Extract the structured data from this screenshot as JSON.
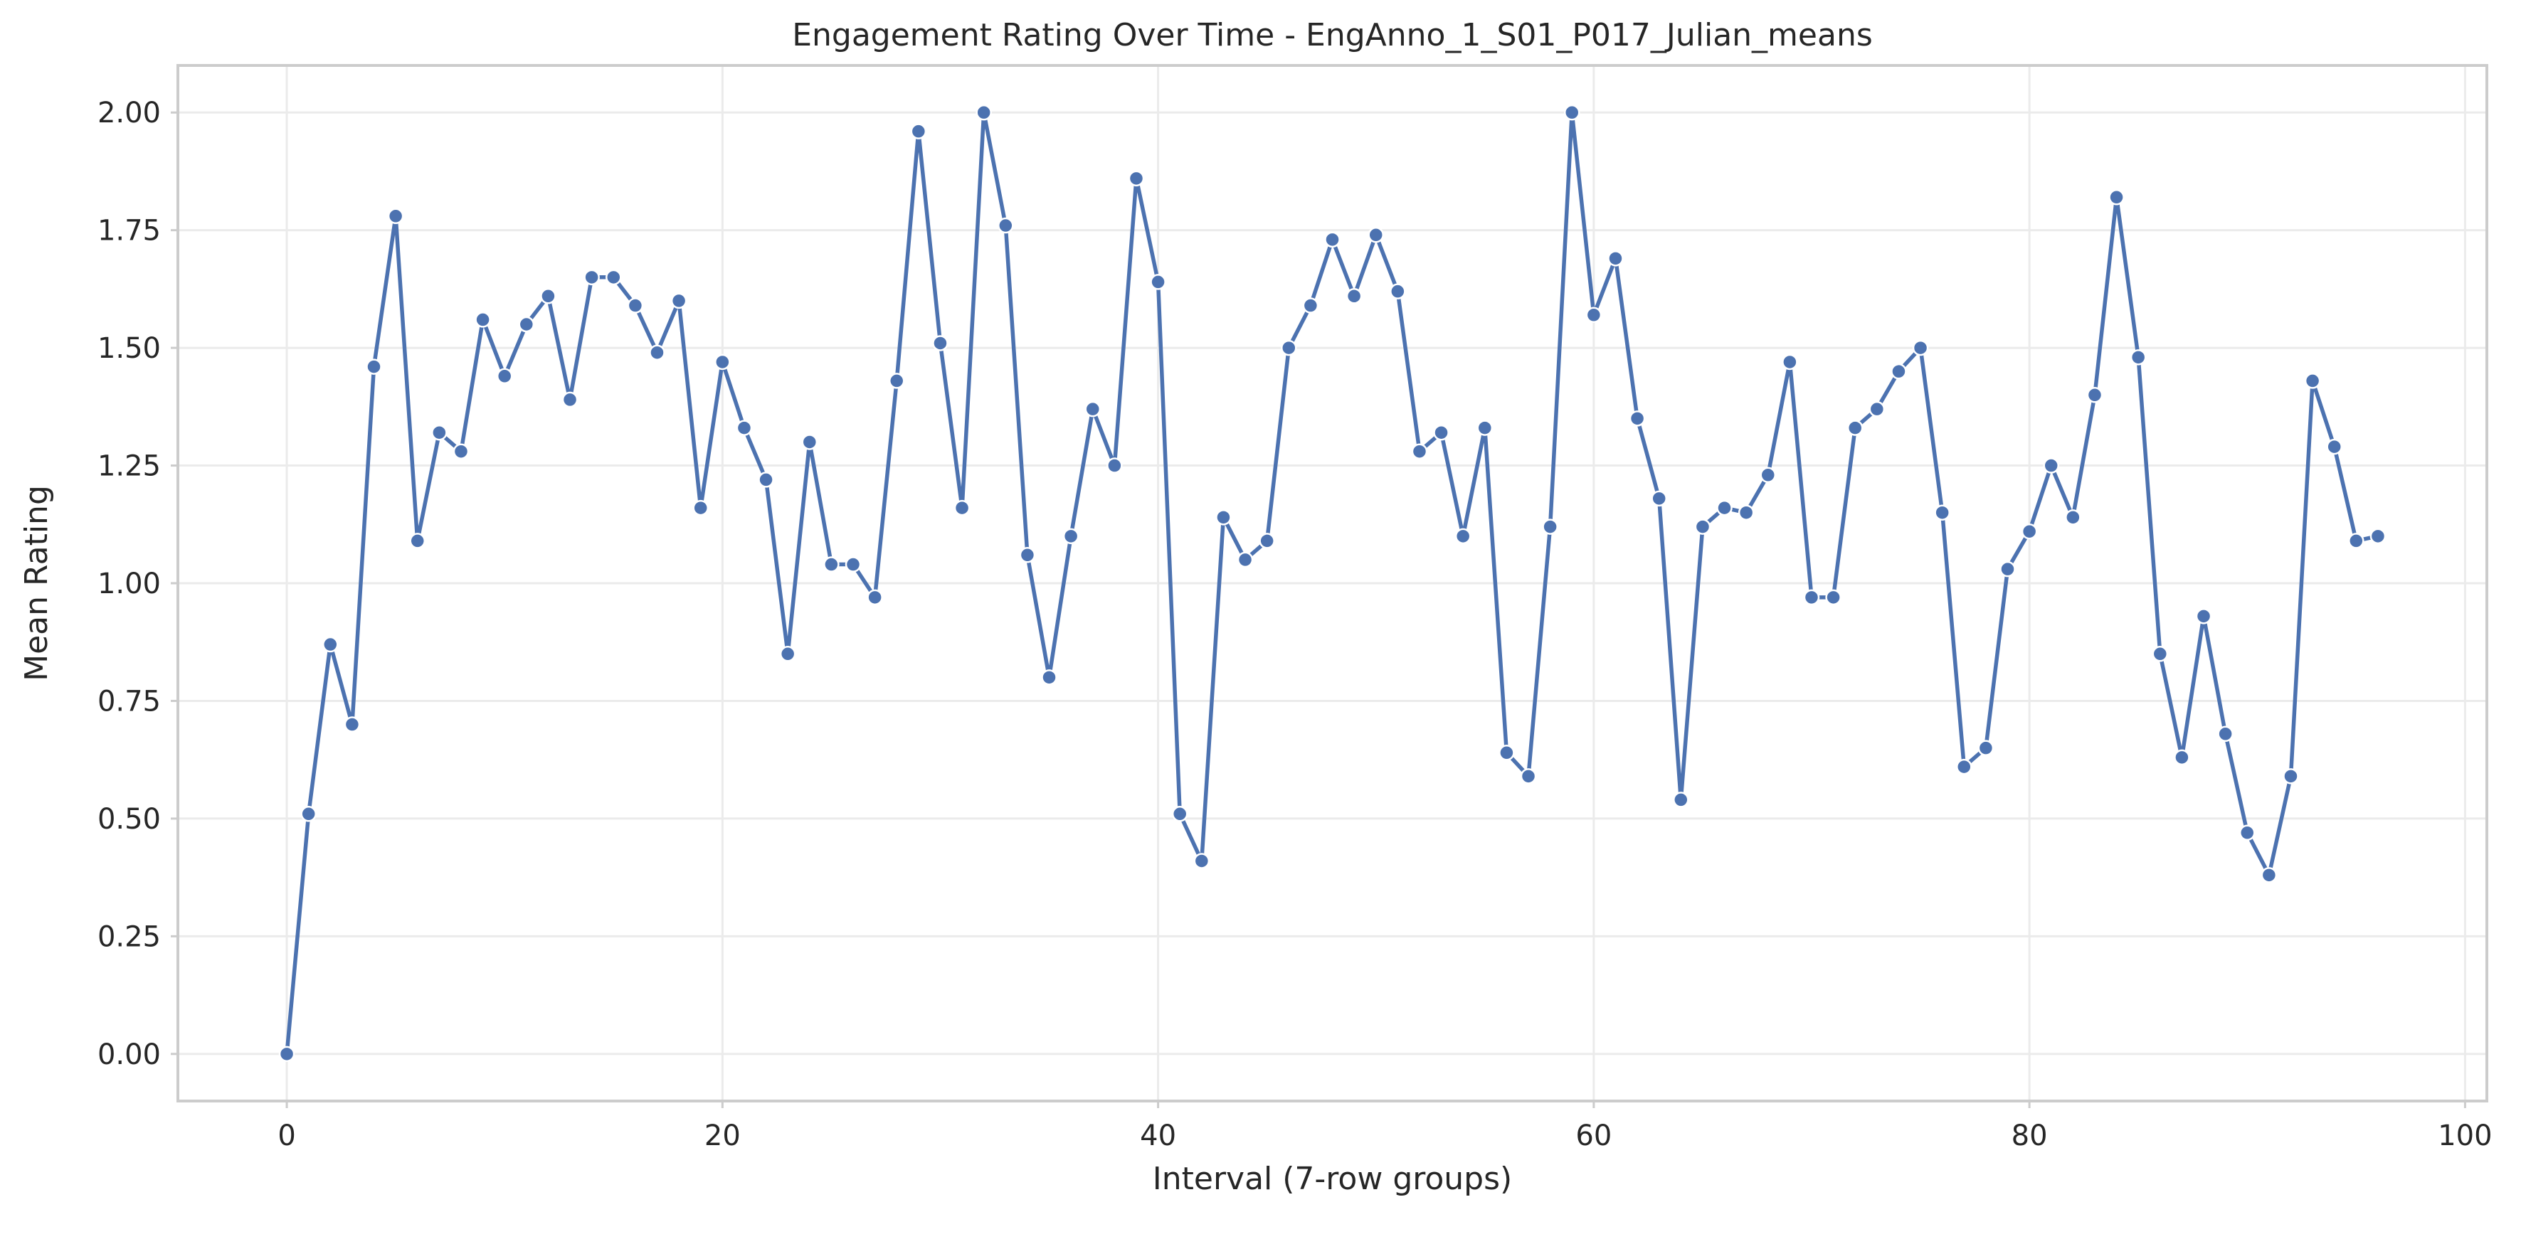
{
  "chart_data": {
    "type": "line",
    "title": "Engagement Rating Over Time -  EngAnno_1_S01_P017_Julian_means",
    "xlabel": "Interval (7-row groups)",
    "ylabel": "Mean Rating",
    "xlim": [
      -5,
      101
    ],
    "ylim": [
      -0.1,
      2.1
    ],
    "xticks": [
      0,
      20,
      40,
      60,
      80,
      100
    ],
    "xtick_labels": [
      "0",
      "20",
      "40",
      "60",
      "80",
      "100"
    ],
    "yticks": [
      0,
      0.25,
      0.5,
      0.75,
      1.0,
      1.25,
      1.5,
      1.75,
      2.0
    ],
    "ytick_labels": [
      "0.00",
      "0.25",
      "0.50",
      "0.75",
      "1.00",
      "1.25",
      "1.50",
      "1.75",
      "2.00"
    ],
    "grid": true,
    "marker": "circle",
    "colors": {
      "series": "#4c72b0",
      "grid": "#ebebeb",
      "frame": "#cccccc",
      "text": "#262626"
    },
    "x": [
      0,
      1,
      2,
      3,
      4,
      5,
      6,
      7,
      8,
      9,
      10,
      11,
      12,
      13,
      14,
      15,
      16,
      17,
      18,
      19,
      20,
      21,
      22,
      23,
      24,
      25,
      26,
      27,
      28,
      29,
      30,
      31,
      32,
      33,
      34,
      35,
      36,
      37,
      38,
      39,
      40,
      41,
      42,
      43,
      44,
      45,
      46,
      47,
      48,
      49,
      50,
      51,
      52,
      53,
      54,
      55,
      56,
      57,
      58,
      59,
      60,
      61,
      62,
      63,
      64,
      65,
      66,
      67,
      68,
      69,
      70,
      71,
      72,
      73,
      74,
      75,
      76,
      77,
      78,
      79,
      80,
      81,
      82,
      83,
      84,
      85,
      86,
      87,
      88,
      89,
      90,
      91,
      92,
      93,
      94,
      95,
      96
    ],
    "y": [
      0.0,
      0.51,
      0.87,
      0.7,
      1.46,
      1.78,
      1.09,
      1.32,
      1.28,
      1.56,
      1.44,
      1.55,
      1.61,
      1.39,
      1.65,
      1.65,
      1.59,
      1.49,
      1.6,
      1.16,
      1.47,
      1.33,
      1.22,
      0.85,
      1.3,
      1.04,
      1.04,
      0.97,
      1.43,
      1.96,
      1.51,
      1.16,
      2.0,
      1.76,
      1.06,
      0.8,
      1.1,
      1.37,
      1.25,
      1.86,
      1.64,
      0.51,
      0.41,
      1.14,
      1.05,
      1.09,
      1.5,
      1.59,
      1.73,
      1.61,
      1.74,
      1.62,
      1.28,
      1.32,
      1.1,
      1.33,
      0.64,
      0.59,
      1.12,
      2.0,
      1.57,
      1.69,
      1.35,
      1.18,
      0.54,
      1.12,
      1.16,
      1.15,
      1.23,
      1.47,
      0.97,
      0.97,
      1.33,
      1.37,
      1.45,
      1.5,
      1.15,
      0.61,
      0.65,
      1.03,
      1.11,
      1.25,
      1.14,
      1.4,
      1.82,
      1.48,
      0.85,
      0.63,
      0.93,
      0.68,
      0.47,
      0.38,
      0.59,
      1.43,
      1.29,
      1.09,
      1.1
    ]
  }
}
